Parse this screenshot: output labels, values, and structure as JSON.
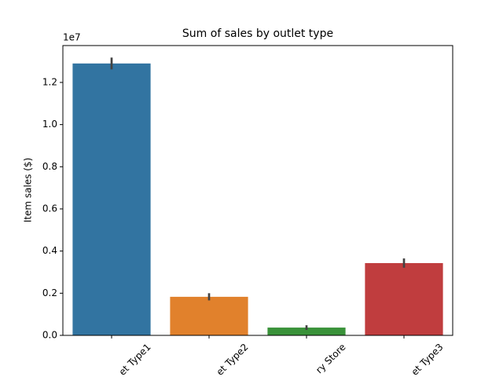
{
  "chart_data": {
    "type": "bar",
    "title": "Sum of sales by outlet type",
    "y_label": "Item sales ($)",
    "y_offset_label": "1e7",
    "categories": [
      "et Type1",
      "et Type2",
      "ry Store",
      "et Type3"
    ],
    "series": [
      {
        "name": "Item sales",
        "values": [
          1.29,
          0.183,
          0.037,
          0.343
        ],
        "errors": [
          0.028,
          0.017,
          0.011,
          0.022
        ]
      }
    ],
    "colors": [
      "#3274a1",
      "#e1812c",
      "#3a923a",
      "#c03d3e"
    ],
    "ylim": [
      0,
      1.375
    ],
    "yticks": [
      {
        "value": 0,
        "label": "0.0"
      },
      {
        "value": 0.2,
        "label": "0.2"
      },
      {
        "value": 0.4,
        "label": "0.4"
      },
      {
        "value": 0.6,
        "label": "0.6"
      },
      {
        "value": 0.8,
        "label": "0.8"
      },
      {
        "value": 1.0,
        "label": "1.0"
      },
      {
        "value": 1.2,
        "label": "1.2"
      }
    ],
    "grid": false
  }
}
